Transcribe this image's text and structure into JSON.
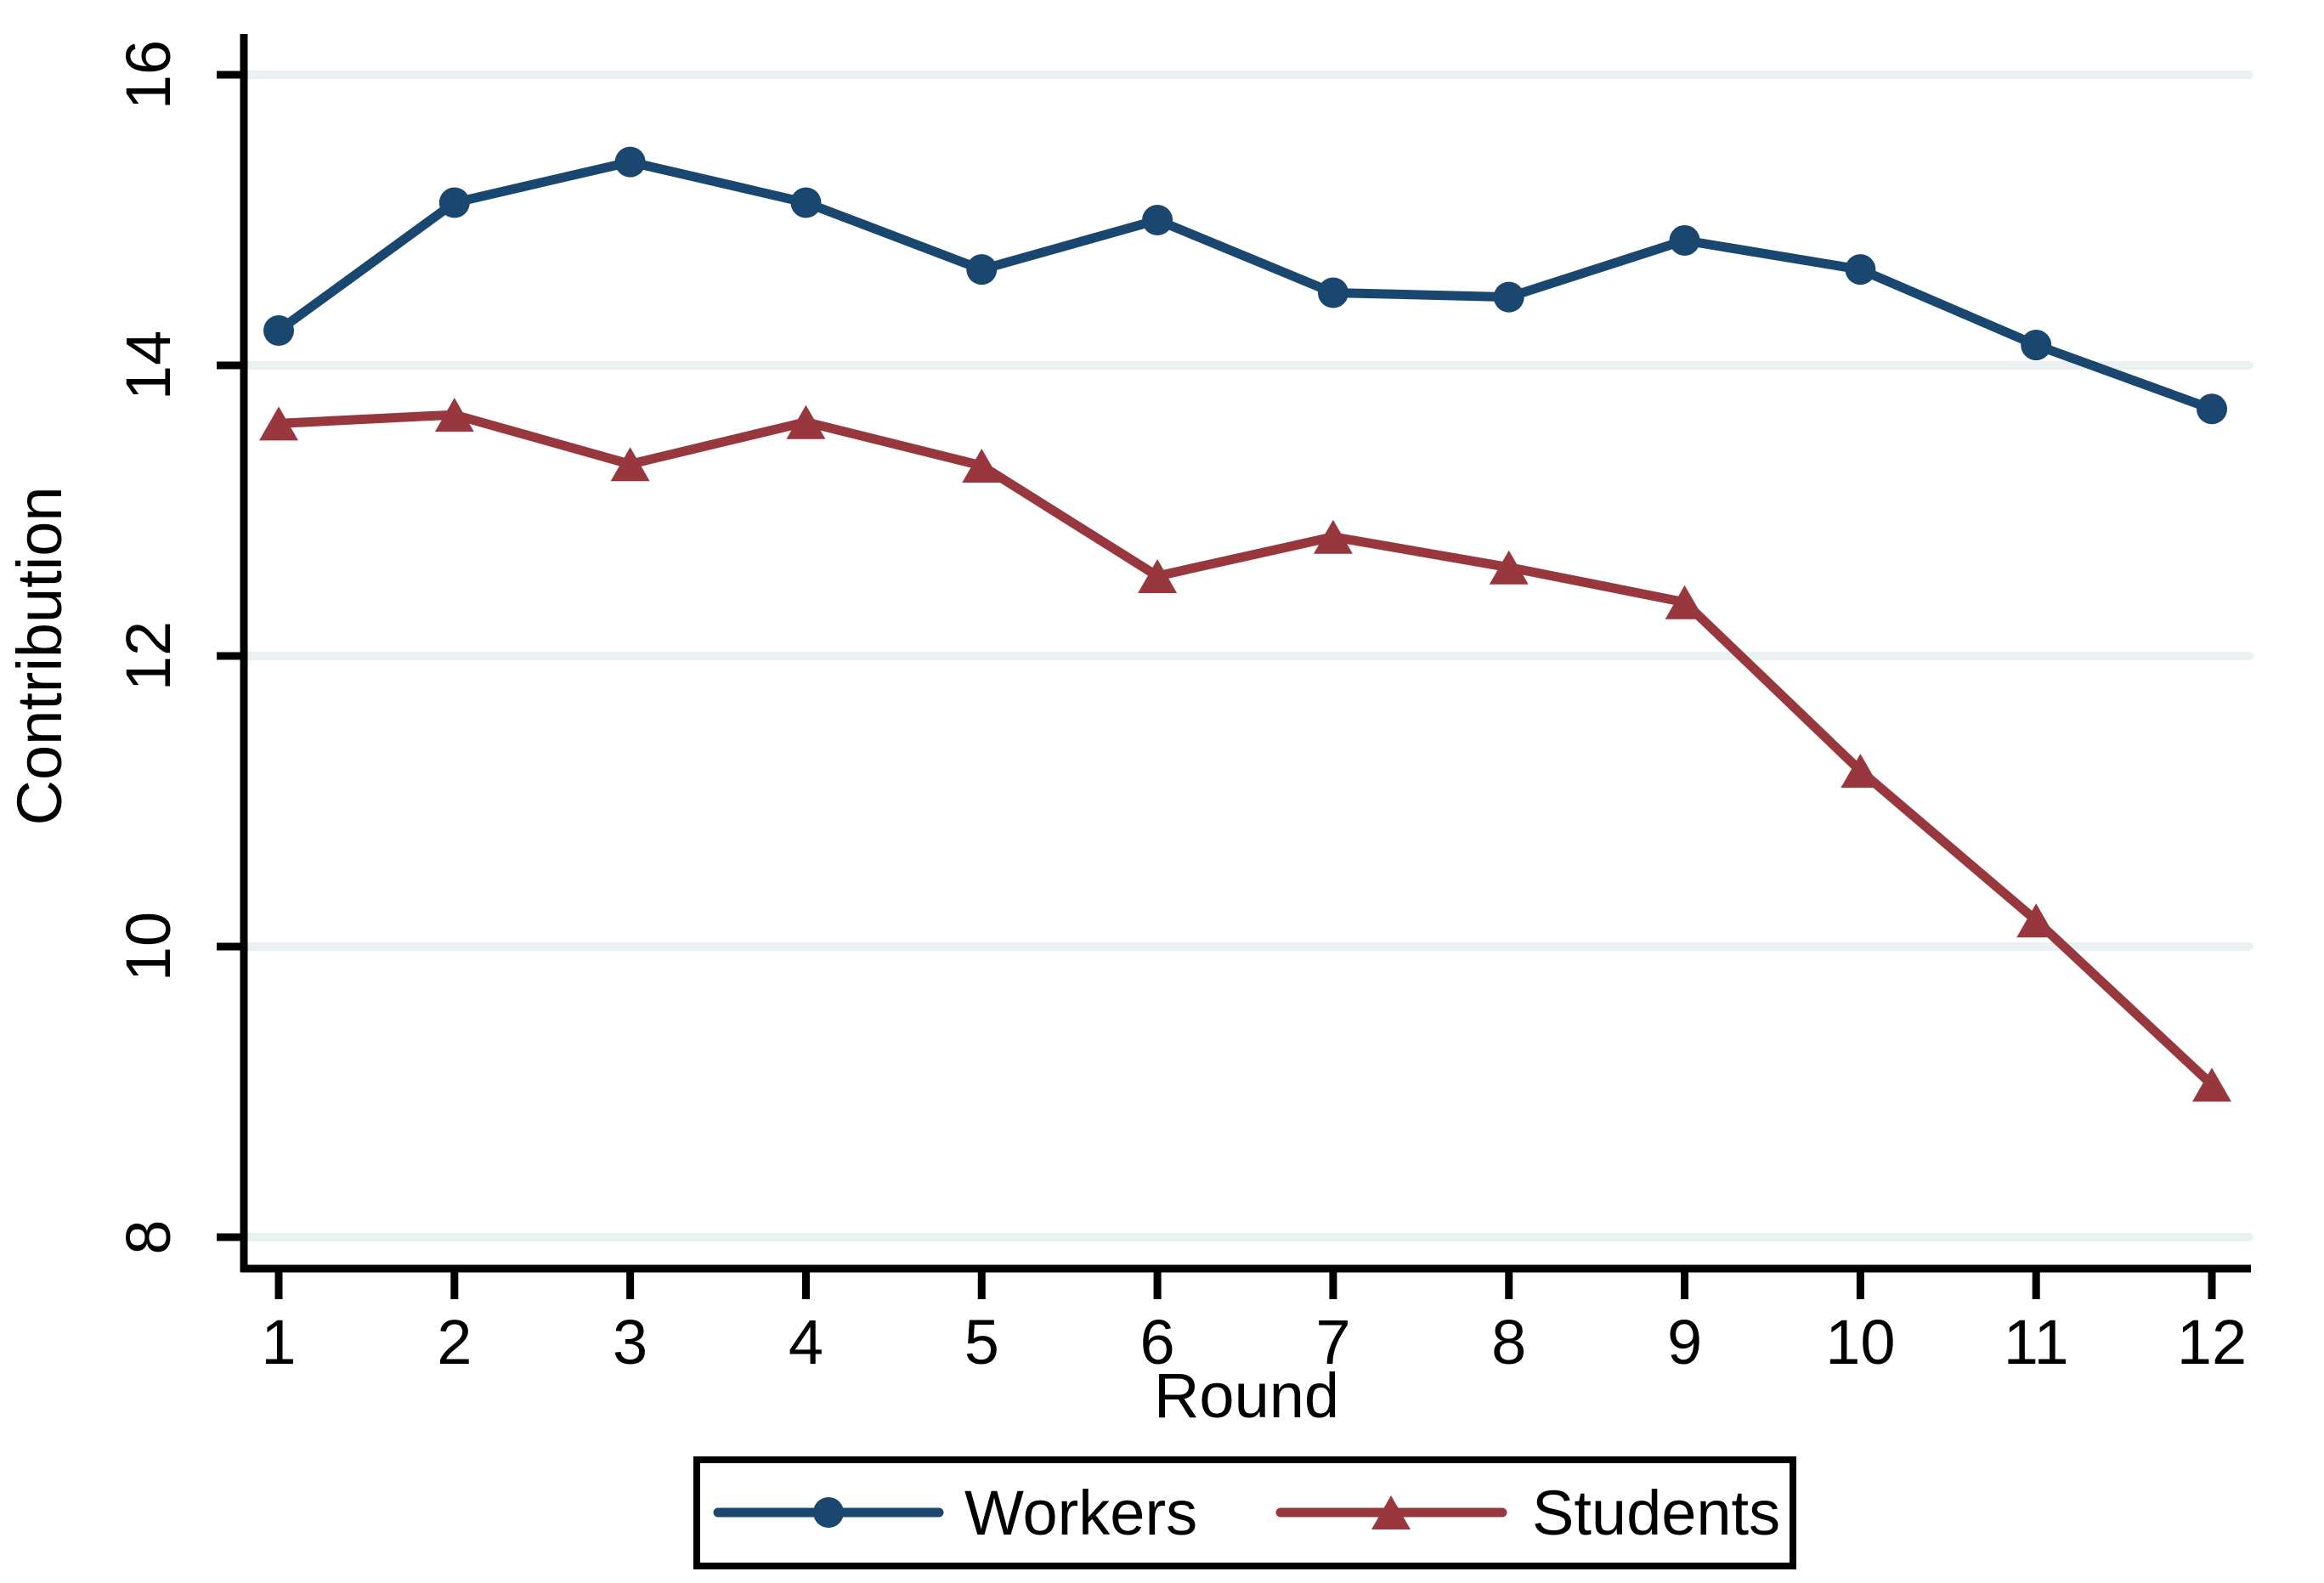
{
  "chart_data": {
    "type": "line",
    "title": "",
    "xlabel": "Round",
    "ylabel": "Contribution",
    "x": [
      1,
      2,
      3,
      4,
      5,
      6,
      7,
      8,
      9,
      10,
      11,
      12
    ],
    "x_tick_labels": [
      "1",
      "2",
      "3",
      "4",
      "5",
      "6",
      "7",
      "8",
      "9",
      "10",
      "11",
      "12"
    ],
    "y_ticks": [
      8,
      10,
      12,
      14,
      16
    ],
    "y_tick_labels": [
      "8",
      "10",
      "12",
      "14",
      "16"
    ],
    "xlim": [
      1,
      12
    ],
    "ylim": [
      7.8,
      16.3
    ],
    "grid": "horizontal-gridlines-on",
    "legend_position": "bottom-box",
    "gridline_color": "#e9f1f2",
    "axis_color": "#000000",
    "background_color": "#ffffff",
    "series": [
      {
        "name": "Workers",
        "marker": "circle",
        "color": "#1a476f",
        "values": [
          14.24,
          15.12,
          15.4,
          15.12,
          14.66,
          15.0,
          14.5,
          14.47,
          14.86,
          14.66,
          14.14,
          13.7
        ]
      },
      {
        "name": "Students",
        "marker": "triangle",
        "color": "#98383e",
        "values": [
          13.6,
          13.66,
          13.32,
          13.61,
          13.31,
          12.55,
          12.82,
          12.61,
          12.37,
          11.21,
          10.18,
          9.05
        ]
      }
    ]
  }
}
